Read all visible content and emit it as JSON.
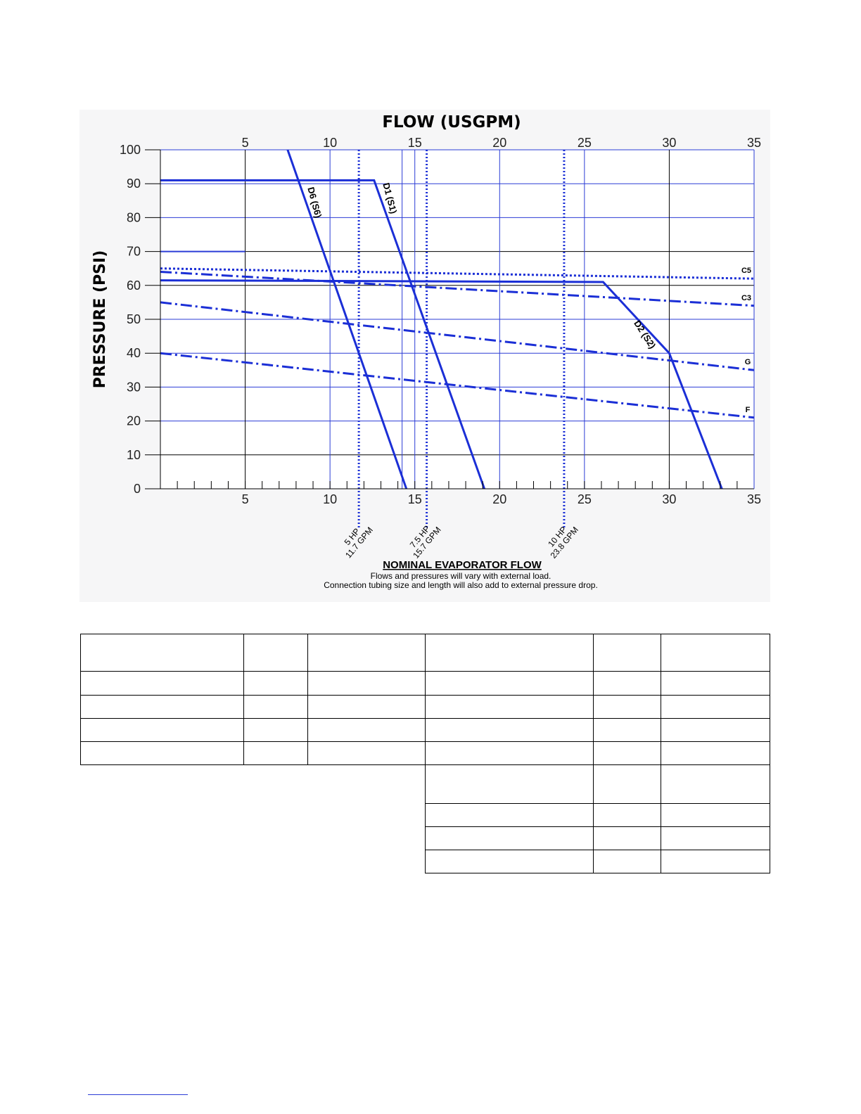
{
  "chart_data": {
    "type": "line",
    "title": "FLOW (USGPM)",
    "xlabel": "NOMINAL EVAPORATOR FLOW",
    "ylabel": "PRESSURE (PSI)",
    "xlim": [
      0,
      35
    ],
    "ylim": [
      0,
      100
    ],
    "x_ticks": [
      "5",
      "10",
      "15",
      "20",
      "25",
      "30",
      "35"
    ],
    "x_tick_values": [
      5,
      10,
      15,
      20,
      25,
      30,
      35
    ],
    "y_ticks": [
      "0",
      "10",
      "20",
      "30",
      "40",
      "50",
      "60",
      "70",
      "80",
      "90",
      "100"
    ],
    "y_tick_values": [
      0,
      10,
      20,
      30,
      40,
      50,
      60,
      70,
      80,
      90,
      100
    ],
    "grid": true,
    "notes": [
      "Flows and pressures will vary with external load.",
      "Connection tubing size and length will also add to external pressure drop."
    ],
    "series": [
      {
        "name": "D6 (S6)",
        "style": "solid",
        "points": [
          [
            7.5,
            100
          ],
          [
            14.5,
            0
          ]
        ]
      },
      {
        "name": "D1 (S1)",
        "style": "solid",
        "points": [
          [
            0,
            91
          ],
          [
            12.6,
            91
          ],
          [
            19.1,
            0
          ]
        ]
      },
      {
        "name": "D2 (S2)",
        "style": "solid",
        "points": [
          [
            0,
            61.5
          ],
          [
            26.1,
            61
          ],
          [
            30,
            40
          ],
          [
            33.1,
            0
          ]
        ]
      },
      {
        "name": "C5",
        "style": "dotted",
        "points": [
          [
            0,
            65
          ],
          [
            35,
            62
          ]
        ]
      },
      {
        "name": "C3",
        "style": "dash-dot",
        "points": [
          [
            0,
            64
          ],
          [
            35,
            54
          ]
        ]
      },
      {
        "name": "G",
        "style": "dash-dot",
        "points": [
          [
            0,
            55
          ],
          [
            35,
            35
          ]
        ]
      },
      {
        "name": "F",
        "style": "dash-dot",
        "points": [
          [
            0,
            40
          ],
          [
            35,
            21
          ]
        ]
      }
    ],
    "reference_lines": [
      {
        "x": 11.7,
        "label_line1": "5 HP",
        "label_line2": "11.7 GPM"
      },
      {
        "x": 15.7,
        "label_line1": "7.5 HP",
        "label_line2": "15.7 GPM"
      },
      {
        "x": 23.8,
        "label_line1": "10 HP",
        "label_line2": "23.8 GPM"
      }
    ],
    "colors": {
      "line": "#1b2fd6",
      "grid": "#2b3cd6",
      "grid_dark": "#000000",
      "axis": "#000000",
      "background": "#f6f6f7"
    }
  },
  "table": {
    "rows_main": [
      [
        "",
        "",
        "",
        "",
        "",
        ""
      ],
      [
        "",
        "",
        "",
        "",
        "",
        ""
      ],
      [
        "",
        "",
        "",
        "",
        "",
        ""
      ],
      [
        "",
        "",
        "",
        "",
        "",
        ""
      ],
      [
        "",
        "",
        "",
        "",
        "",
        ""
      ]
    ],
    "rows_right": [
      [
        "",
        "",
        ""
      ],
      [
        "",
        "",
        ""
      ],
      [
        "",
        "",
        ""
      ],
      [
        "",
        "",
        ""
      ]
    ]
  }
}
